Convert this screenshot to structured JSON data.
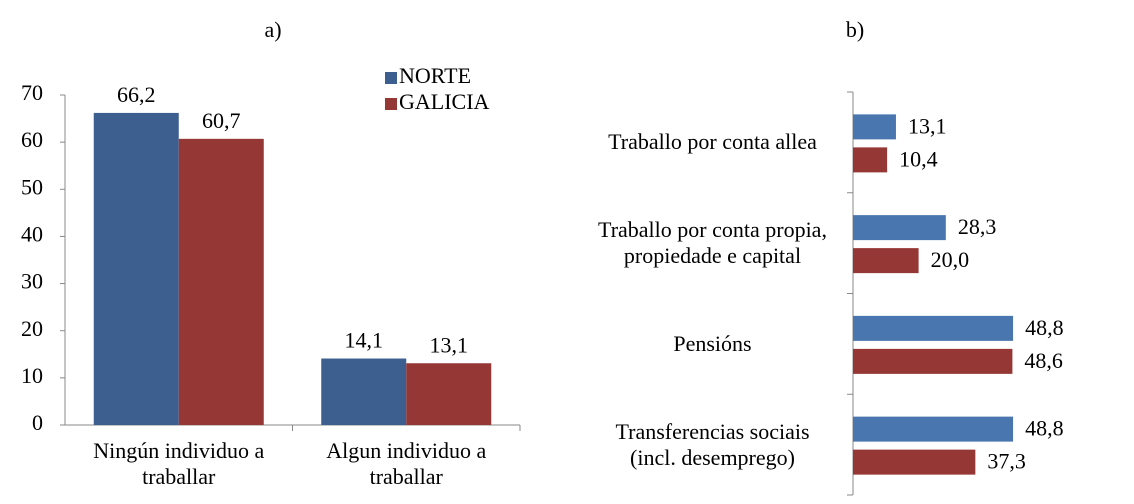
{
  "chart_data": [
    {
      "type": "bar",
      "title": "a)",
      "categories": [
        "Ningún individuo a traballar",
        "Algun individuo a traballar"
      ],
      "series": [
        {
          "name": "NORTE",
          "color": "#3c5f8f",
          "values": [
            66.2,
            14.1
          ],
          "value_labels": [
            "66,2",
            "14,1"
          ]
        },
        {
          "name": "GALICIA",
          "color": "#953735",
          "values": [
            60.7,
            13.1
          ],
          "value_labels": [
            "60,7",
            "13,1"
          ]
        }
      ],
      "ylim": [
        0,
        70
      ],
      "yticks": [
        0,
        10,
        20,
        30,
        40,
        50,
        60,
        70
      ],
      "legend": "top-right"
    },
    {
      "type": "hbar",
      "title": "b)",
      "categories": [
        "Traballo por conta allea",
        "Traballo por conta propia, propiedade e capital",
        "Pensións",
        "Transferencias sociais (incl. desemprego)"
      ],
      "series": [
        {
          "name": "NORTE",
          "color": "#4a76b0",
          "values": [
            13.1,
            28.3,
            48.8,
            48.8
          ],
          "value_labels": [
            "13,1",
            "28,3",
            "48,8",
            "48,8"
          ]
        },
        {
          "name": "GALICIA",
          "color": "#953735",
          "values": [
            10.4,
            20.0,
            48.6,
            37.3
          ],
          "value_labels": [
            "10,4",
            "20,0",
            "48,6",
            "37,3"
          ]
        }
      ],
      "xlim": [
        0,
        50
      ]
    }
  ]
}
